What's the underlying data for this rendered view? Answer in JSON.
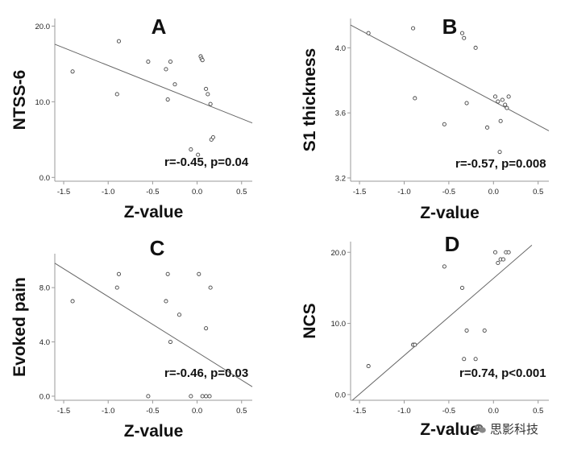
{
  "chart_data": [
    {
      "type": "scatter",
      "panel_label": "A",
      "xlabel": "Z-value",
      "ylabel": "NTSS-6",
      "xlim": [
        -1.6,
        0.62
      ],
      "ylim": [
        -0.5,
        21
      ],
      "xticks": [
        -1.5,
        -1.0,
        -0.5,
        0.0,
        0.5
      ],
      "xtick_labels": [
        "-1.5",
        "-1.0",
        "-0.5",
        "0.0",
        "0.5"
      ],
      "yticks": [
        0,
        10,
        20
      ],
      "ytick_labels": [
        "0.0",
        "10.0",
        "20.0"
      ],
      "annotation": "r=-0.45, p=0.04",
      "regression": {
        "x": [
          -1.6,
          0.62
        ],
        "y": [
          17.6,
          7.2
        ]
      },
      "points": {
        "x": [
          -1.4,
          -0.9,
          -0.88,
          -0.55,
          -0.35,
          -0.33,
          -0.3,
          -0.25,
          0.04,
          0.05,
          0.06,
          0.1,
          0.12,
          0.15,
          0.16,
          -0.07,
          0.01,
          0.18
        ],
        "y": [
          14.0,
          11.0,
          18.0,
          15.3,
          14.3,
          10.3,
          15.3,
          12.3,
          16.0,
          15.7,
          15.5,
          11.7,
          11.0,
          9.7,
          5.0,
          3.7,
          3.0,
          5.3
        ]
      }
    },
    {
      "type": "scatter",
      "panel_label": "B",
      "xlabel": "Z-value",
      "ylabel": "S1 thickness",
      "xlim": [
        -1.6,
        0.62
      ],
      "ylim": [
        3.18,
        4.18
      ],
      "xticks": [
        -1.5,
        -1.0,
        -0.5,
        0.0,
        0.5
      ],
      "xtick_labels": [
        "-1.5",
        "-1.0",
        "-0.5",
        "0.0",
        "0.5"
      ],
      "yticks": [
        3.2,
        3.6,
        4.0
      ],
      "ytick_labels": [
        "3.2",
        "3.6",
        "4.0"
      ],
      "annotation": "r=-0.57, p=0.008",
      "regression": {
        "x": [
          -1.6,
          0.62
        ],
        "y": [
          4.14,
          3.49
        ]
      },
      "points": {
        "x": [
          -1.4,
          -0.9,
          -0.88,
          -0.55,
          -0.35,
          -0.33,
          -0.3,
          -0.2,
          0.02,
          0.05,
          0.1,
          0.13,
          0.15,
          0.17,
          0.08,
          -0.07,
          0.07
        ],
        "y": [
          4.09,
          4.12,
          3.69,
          3.53,
          4.09,
          4.06,
          3.66,
          4.0,
          3.7,
          3.67,
          3.68,
          3.65,
          3.63,
          3.7,
          3.55,
          3.51,
          3.36
        ]
      }
    },
    {
      "type": "scatter",
      "panel_label": "C",
      "xlabel": "Z-value",
      "ylabel": "Evoked pain",
      "xlim": [
        -1.6,
        0.62
      ],
      "ylim": [
        -0.3,
        10.5
      ],
      "xticks": [
        -1.5,
        -1.0,
        -0.5,
        0.0,
        0.5
      ],
      "xtick_labels": [
        "-1.5",
        "-1.0",
        "-0.5",
        "0.0",
        "0.5"
      ],
      "yticks": [
        0,
        4,
        8
      ],
      "ytick_labels": [
        "0.0",
        "4.0",
        "8.0"
      ],
      "annotation": "r=-0.46, p=0.03",
      "regression": {
        "x": [
          -1.6,
          0.62
        ],
        "y": [
          9.8,
          0.7
        ]
      },
      "points": {
        "x": [
          -1.4,
          -0.9,
          -0.88,
          -0.55,
          -0.35,
          -0.33,
          -0.3,
          -0.2,
          0.02,
          0.1,
          0.15,
          -0.07,
          0.06,
          0.1,
          0.14
        ],
        "y": [
          7.0,
          8.0,
          9.0,
          0.0,
          7.0,
          9.0,
          4.0,
          6.0,
          9.0,
          5.0,
          8.0,
          0.0,
          0.0,
          0.0,
          0.0
        ]
      }
    },
    {
      "type": "scatter",
      "panel_label": "D",
      "xlabel": "Z-value",
      "ylabel": "NCS",
      "xlim": [
        -1.6,
        0.62
      ],
      "ylim": [
        -0.8,
        21.5
      ],
      "xticks": [
        -1.5,
        -1.0,
        -0.5,
        0.0,
        0.5
      ],
      "xtick_labels": [
        "-1.5",
        "-1.0",
        "-0.5",
        "0.0",
        "0.5"
      ],
      "yticks": [
        0,
        10,
        20
      ],
      "ytick_labels": [
        "0.0",
        "10.0",
        "20.0"
      ],
      "annotation": "r=0.74, p<0.001",
      "regression": {
        "x": [
          -1.58,
          0.43
        ],
        "y": [
          -0.8,
          21.0
        ]
      },
      "points": {
        "x": [
          -1.4,
          -0.9,
          -0.88,
          -0.55,
          -0.35,
          -0.33,
          -0.3,
          -0.2,
          -0.1,
          0.02,
          0.05,
          0.08,
          0.11,
          0.14,
          0.17
        ],
        "y": [
          4.0,
          7.0,
          7.0,
          18.0,
          15.0,
          5.0,
          9.0,
          5.0,
          9.0,
          20.0,
          18.5,
          19.0,
          19.0,
          20.0,
          20.0
        ]
      }
    }
  ],
  "watermark": {
    "icon": "wechat-icon",
    "text": "思影科技"
  }
}
